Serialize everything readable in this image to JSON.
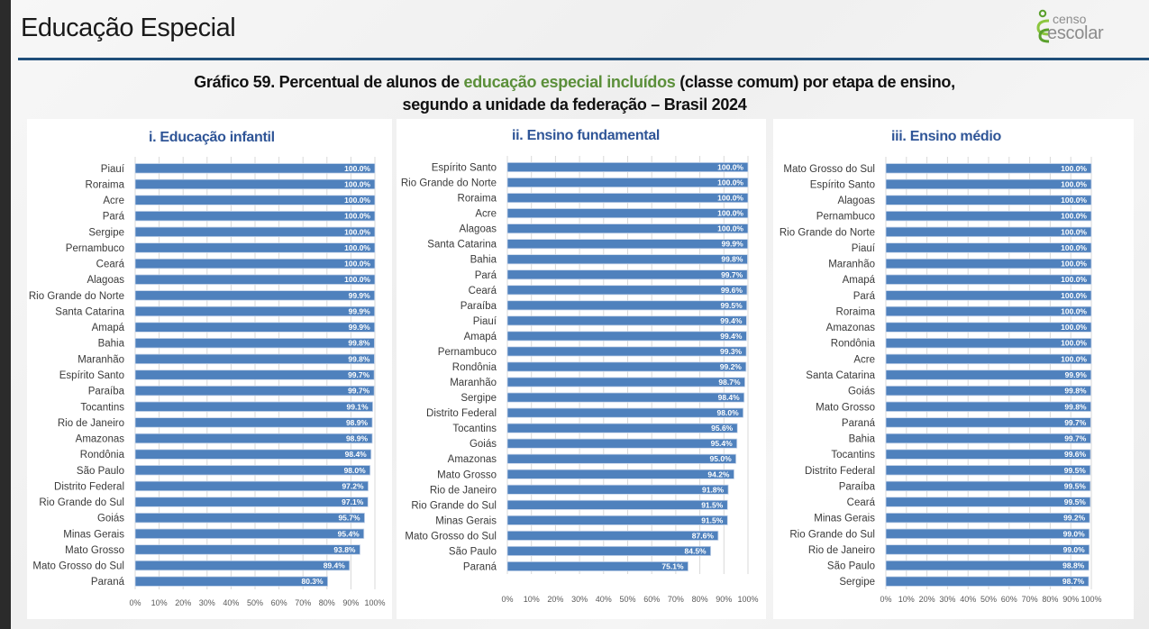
{
  "header": {
    "page_title": "Educação Especial",
    "logo": {
      "icon": "censo-escolar-logo-icon",
      "line1": "censo",
      "line2": "escolar"
    }
  },
  "title": {
    "line1_prefix": "Gráfico 59. Percentual de alunos de ",
    "line1_highlight": "educação especial incluídos",
    "line1_suffix": " (classe comum) por etapa de ensino,",
    "line2": "segundo a unidade da federação – Brasil 2024"
  },
  "colors": {
    "bar": "#4f81bd",
    "title_highlight": "#5b8f3a",
    "subtitle": "#2f5597",
    "header_rule": "#1f4e79"
  },
  "chart_data": [
    {
      "type": "bar",
      "orientation": "horizontal",
      "title": "i. Educação infantil",
      "xlabel": "",
      "ylabel": "",
      "xlim": [
        0,
        100
      ],
      "xticks": [
        "0%",
        "10%",
        "20%",
        "30%",
        "40%",
        "50%",
        "60%",
        "70%",
        "80%",
        "90%",
        "100%"
      ],
      "grid": true,
      "categories": [
        "Piauí",
        "Roraima",
        "Acre",
        "Pará",
        "Sergipe",
        "Pernambuco",
        "Ceará",
        "Alagoas",
        "Rio Grande do Norte",
        "Santa Catarina",
        "Amapá",
        "Bahia",
        "Maranhão",
        "Espírito Santo",
        "Paraíba",
        "Tocantins",
        "Rio de Janeiro",
        "Amazonas",
        "Rondônia",
        "São Paulo",
        "Distrito Federal",
        "Rio Grande do Sul",
        "Goiás",
        "Minas Gerais",
        "Mato Grosso",
        "Mato Grosso do Sul",
        "Paraná"
      ],
      "values": [
        100.0,
        100.0,
        100.0,
        100.0,
        100.0,
        100.0,
        100.0,
        100.0,
        99.9,
        99.9,
        99.9,
        99.8,
        99.8,
        99.7,
        99.7,
        99.1,
        98.9,
        98.9,
        98.4,
        98.0,
        97.2,
        97.1,
        95.7,
        95.4,
        93.8,
        89.4,
        80.3
      ],
      "labels": [
        "100.0%",
        "100.0%",
        "100.0%",
        "100.0%",
        "100.0%",
        "100.0%",
        "100.0%",
        "100.0%",
        "99.9%",
        "99.9%",
        "99.9%",
        "99.8%",
        "99.8%",
        "99.7%",
        "99.7%",
        "99.1%",
        "98.9%",
        "98.9%",
        "98.4%",
        "98.0%",
        "97.2%",
        "97.1%",
        "95.7%",
        "95.4%",
        "93.8%",
        "89.4%",
        "80.3%"
      ]
    },
    {
      "type": "bar",
      "orientation": "horizontal",
      "title": "ii. Ensino fundamental",
      "xlabel": "",
      "ylabel": "",
      "xlim": [
        0,
        100
      ],
      "xticks": [
        "0%",
        "10%",
        "20%",
        "30%",
        "40%",
        "50%",
        "60%",
        "70%",
        "80%",
        "90%",
        "100%"
      ],
      "grid": true,
      "categories": [
        "Espírito Santo",
        "Rio Grande do Norte",
        "Roraima",
        "Acre",
        "Alagoas",
        "Santa Catarina",
        "Bahia",
        "Pará",
        "Ceará",
        "Paraíba",
        "Piauí",
        "Amapá",
        "Pernambuco",
        "Rondônia",
        "Maranhão",
        "Sergipe",
        "Distrito Federal",
        "Tocantins",
        "Goiás",
        "Amazonas",
        "Mato Grosso",
        "Rio de Janeiro",
        "Rio Grande do Sul",
        "Minas Gerais",
        "Mato Grosso do Sul",
        "São Paulo",
        "Paraná"
      ],
      "values": [
        100.0,
        100.0,
        100.0,
        100.0,
        100.0,
        99.9,
        99.8,
        99.7,
        99.6,
        99.5,
        99.4,
        99.4,
        99.3,
        99.2,
        98.7,
        98.4,
        98.0,
        95.6,
        95.4,
        95.0,
        94.2,
        91.8,
        91.5,
        91.5,
        87.6,
        84.5,
        75.1
      ],
      "labels": [
        "100.0%",
        "100.0%",
        "100.0%",
        "100.0%",
        "100.0%",
        "99.9%",
        "99.8%",
        "99.7%",
        "99.6%",
        "99.5%",
        "99.4%",
        "99.4%",
        "99.3%",
        "99.2%",
        "98.7%",
        "98.4%",
        "98.0%",
        "95.6%",
        "95.4%",
        "95.0%",
        "94.2%",
        "91.8%",
        "91.5%",
        "91.5%",
        "87.6%",
        "84.5%",
        "75.1%"
      ]
    },
    {
      "type": "bar",
      "orientation": "horizontal",
      "title": "iii. Ensino médio",
      "xlabel": "",
      "ylabel": "",
      "xlim": [
        0,
        100
      ],
      "xticks": [
        "0%",
        "10%",
        "20%",
        "30%",
        "40%",
        "50%",
        "60%",
        "70%",
        "80%",
        "90%",
        "100%"
      ],
      "grid": true,
      "categories": [
        "Mato Grosso do Sul",
        "Espírito Santo",
        "Alagoas",
        "Pernambuco",
        "Rio Grande do Norte",
        "Piauí",
        "Maranhão",
        "Amapá",
        "Pará",
        "Roraima",
        "Amazonas",
        "Rondônia",
        "Acre",
        "Santa Catarina",
        "Goiás",
        "Mato Grosso",
        "Paraná",
        "Bahia",
        "Tocantins",
        "Distrito Federal",
        "Paraíba",
        "Ceará",
        "Minas Gerais",
        "Rio Grande do Sul",
        "Rio de Janeiro",
        "São Paulo",
        "Sergipe"
      ],
      "values": [
        100.0,
        100.0,
        100.0,
        100.0,
        100.0,
        100.0,
        100.0,
        100.0,
        100.0,
        100.0,
        100.0,
        100.0,
        100.0,
        99.9,
        99.8,
        99.8,
        99.7,
        99.7,
        99.6,
        99.5,
        99.5,
        99.5,
        99.2,
        99.0,
        99.0,
        98.8,
        98.7
      ],
      "labels": [
        "100.0%",
        "100.0%",
        "100.0%",
        "100.0%",
        "100.0%",
        "100.0%",
        "100.0%",
        "100.0%",
        "100.0%",
        "100.0%",
        "100.0%",
        "100.0%",
        "100.0%",
        "99.9%",
        "99.8%",
        "99.8%",
        "99.7%",
        "99.7%",
        "99.6%",
        "99.5%",
        "99.5%",
        "99.5%",
        "99.2%",
        "99.0%",
        "99.0%",
        "98.8%",
        "98.7%"
      ]
    }
  ]
}
